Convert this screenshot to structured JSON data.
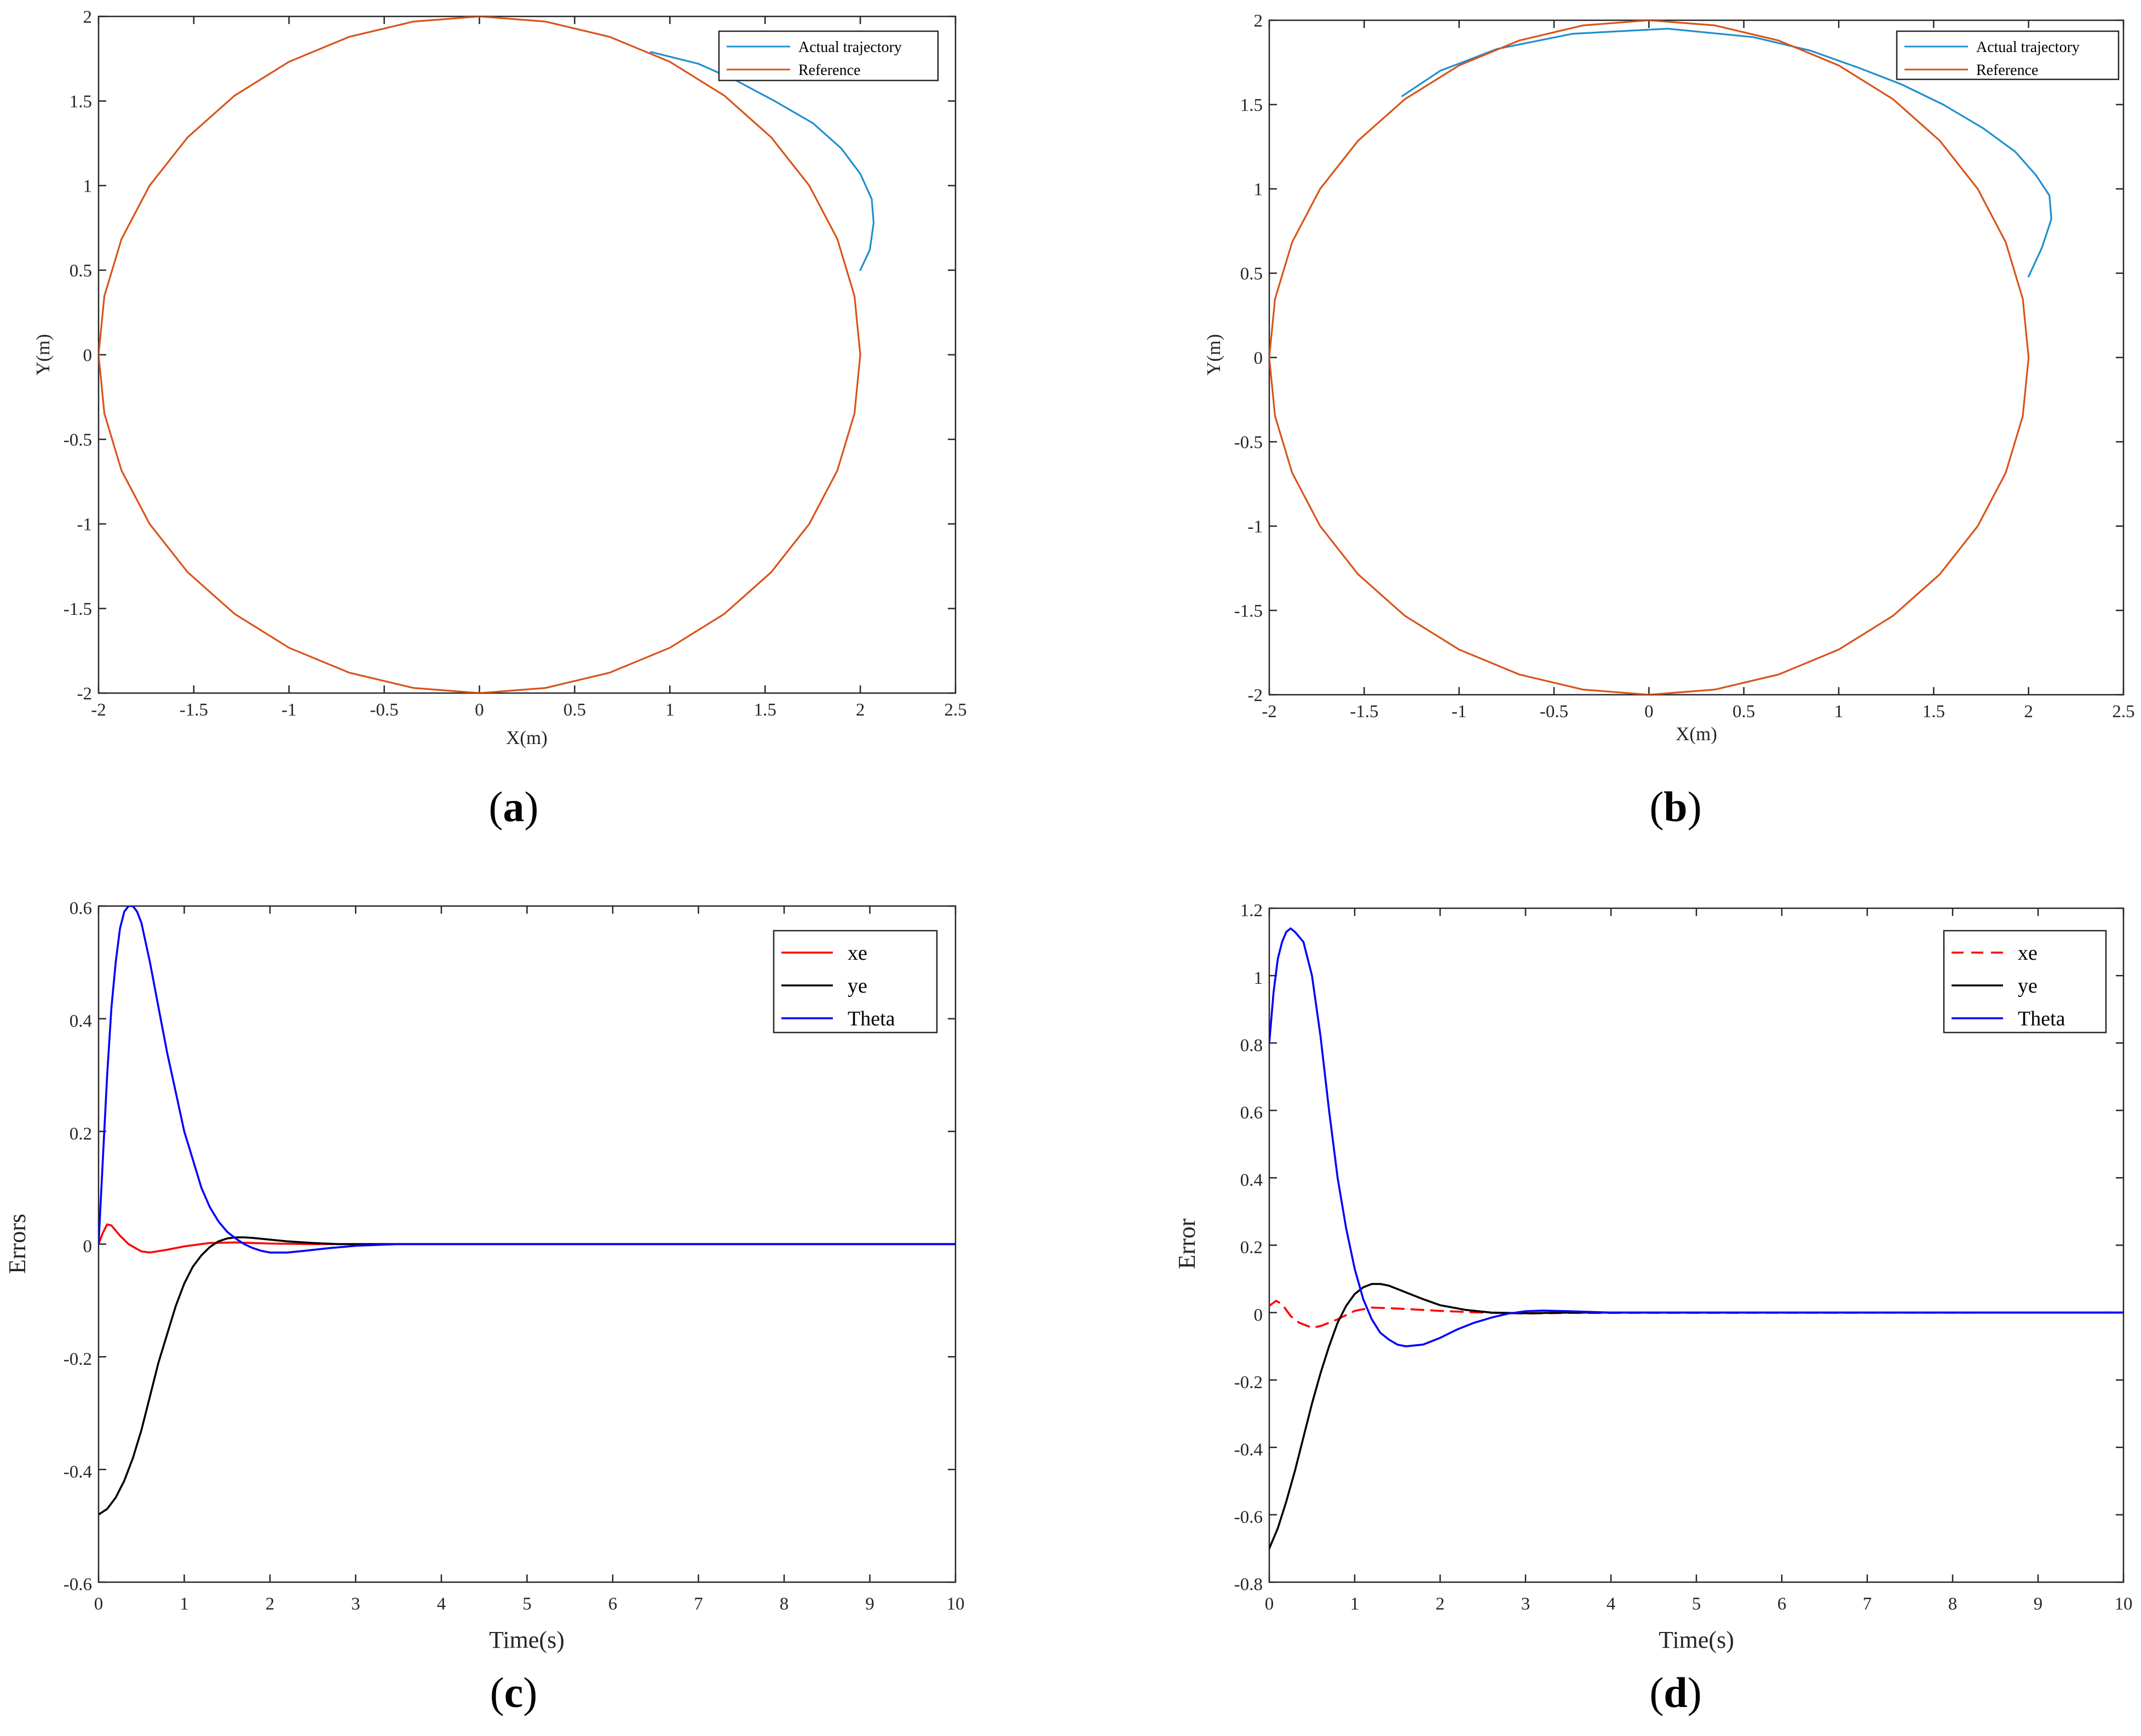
{
  "chart_data": [
    {
      "panel": "a",
      "type": "line",
      "caption": {
        "open": "(",
        "letter": "a",
        "close": ")"
      },
      "xlabel": "X(m)",
      "ylabel": "Y(m)",
      "xlim": [
        -2,
        2.5
      ],
      "ylim": [
        -2,
        2
      ],
      "xticks": [
        "-2",
        "-1.5",
        "-1",
        "-0.5",
        "0",
        "0.5",
        "1",
        "1.5",
        "2",
        "2.5"
      ],
      "xtick_values": [
        -2,
        -1.5,
        -1,
        -0.5,
        0,
        0.5,
        1,
        1.5,
        2,
        2.5
      ],
      "yticks": [
        "-2",
        "-1.5",
        "-1",
        "-0.5",
        "0",
        "0.5",
        "1",
        "1.5",
        "2"
      ],
      "ytick_values": [
        -2,
        -1.5,
        -1,
        -0.5,
        0,
        0.5,
        1,
        1.5,
        2
      ],
      "legend_position": "top-right",
      "series": [
        {
          "name": "Actual trajectory",
          "color": "#1f8fd0",
          "x": [
            2.0,
            2.05,
            2.07,
            2.06,
            2.0,
            1.9,
            1.75,
            1.55,
            1.35,
            1.15,
            0.9
          ],
          "y": [
            0.5,
            0.62,
            0.78,
            0.92,
            1.07,
            1.22,
            1.37,
            1.5,
            1.62,
            1.72,
            1.79
          ]
        },
        {
          "name": "Reference",
          "color": "#d95319",
          "shape": "circle",
          "radius": 2,
          "center": [
            0,
            0
          ]
        }
      ]
    },
    {
      "panel": "b",
      "type": "line",
      "caption": {
        "open": "(",
        "letter": "b",
        "close": ")"
      },
      "xlabel": "X(m)",
      "ylabel": "Y(m)",
      "xlim": [
        -2,
        2.5
      ],
      "ylim": [
        -2,
        2
      ],
      "xticks": [
        "-2",
        "-1.5",
        "-1",
        "-0.5",
        "0",
        "0.5",
        "1",
        "1.5",
        "2",
        "2.5"
      ],
      "xtick_values": [
        -2,
        -1.5,
        -1,
        -0.5,
        0,
        0.5,
        1,
        1.5,
        2,
        2.5
      ],
      "yticks": [
        "-2",
        "-1.5",
        "-1",
        "-0.5",
        "0",
        "0.5",
        "1",
        "1.5",
        "2"
      ],
      "ytick_values": [
        -2,
        -1.5,
        -1,
        -0.5,
        0,
        0.5,
        1,
        1.5,
        2
      ],
      "legend_position": "top-right",
      "series": [
        {
          "name": "Actual trajectory",
          "color": "#1f8fd0",
          "x": [
            2.0,
            2.07,
            2.12,
            2.11,
            2.04,
            1.93,
            1.76,
            1.55,
            1.33,
            1.1,
            0.85,
            0.55,
            0.1,
            -0.4,
            -0.8,
            -1.1,
            -1.3
          ],
          "y": [
            0.48,
            0.65,
            0.82,
            0.96,
            1.08,
            1.22,
            1.36,
            1.5,
            1.62,
            1.72,
            1.82,
            1.9,
            1.95,
            1.92,
            1.83,
            1.7,
            1.55
          ]
        },
        {
          "name": "Reference",
          "color": "#d95319",
          "shape": "circle",
          "radius": 2,
          "center": [
            0,
            0
          ]
        }
      ]
    },
    {
      "panel": "c",
      "type": "line",
      "caption": {
        "open": "(",
        "letter": "c",
        "close": ")"
      },
      "xlabel": "Time(s)",
      "ylabel": "Errors",
      "xlim": [
        0,
        10
      ],
      "ylim": [
        -0.6,
        0.6
      ],
      "xticks": [
        "0",
        "1",
        "2",
        "3",
        "4",
        "5",
        "6",
        "7",
        "8",
        "9",
        "10"
      ],
      "xtick_values": [
        0,
        1,
        2,
        3,
        4,
        5,
        6,
        7,
        8,
        9,
        10
      ],
      "yticks": [
        "-0.6",
        "-0.4",
        "-0.2",
        "0",
        "0.2",
        "0.4",
        "0.6"
      ],
      "ytick_values": [
        -0.6,
        -0.4,
        -0.2,
        0,
        0.2,
        0.4,
        0.6
      ],
      "legend_position": "top-right",
      "series": [
        {
          "name": "xe",
          "color": "#ff0000",
          "dash": "solid",
          "x": [
            0,
            0.05,
            0.1,
            0.15,
            0.25,
            0.35,
            0.5,
            0.6,
            0.8,
            1.0,
            1.3,
            1.6,
            2.0,
            2.5,
            3.0,
            10
          ],
          "y": [
            0,
            0.02,
            0.035,
            0.033,
            0.015,
            0.0,
            -0.013,
            -0.015,
            -0.01,
            -0.004,
            0.002,
            0.003,
            0.001,
            0.0,
            0.0,
            0.0
          ]
        },
        {
          "name": "ye",
          "color": "#000000",
          "dash": "solid",
          "x": [
            0,
            0.1,
            0.2,
            0.3,
            0.4,
            0.5,
            0.6,
            0.7,
            0.8,
            0.9,
            1.0,
            1.1,
            1.2,
            1.3,
            1.4,
            1.5,
            1.6,
            1.7,
            1.8,
            2.0,
            2.2,
            2.5,
            2.8,
            3.2,
            10
          ],
          "y": [
            -0.48,
            -0.47,
            -0.45,
            -0.42,
            -0.38,
            -0.33,
            -0.27,
            -0.21,
            -0.16,
            -0.11,
            -0.07,
            -0.04,
            -0.02,
            -0.005,
            0.005,
            0.01,
            0.012,
            0.012,
            0.011,
            0.008,
            0.005,
            0.002,
            0.0,
            0.0,
            0.0
          ]
        },
        {
          "name": "Theta",
          "color": "#0000ff",
          "dash": "solid",
          "x": [
            0,
            0.05,
            0.1,
            0.15,
            0.2,
            0.25,
            0.3,
            0.35,
            0.4,
            0.45,
            0.5,
            0.6,
            0.7,
            0.8,
            0.9,
            1.0,
            1.1,
            1.2,
            1.3,
            1.4,
            1.5,
            1.6,
            1.7,
            1.8,
            1.9,
            2.0,
            2.2,
            2.4,
            2.7,
            3.0,
            3.5,
            10
          ],
          "y": [
            0.0,
            0.15,
            0.3,
            0.42,
            0.5,
            0.56,
            0.59,
            0.6,
            0.6,
            0.59,
            0.57,
            0.5,
            0.42,
            0.34,
            0.27,
            0.2,
            0.15,
            0.1,
            0.065,
            0.04,
            0.022,
            0.01,
            0.0,
            -0.007,
            -0.012,
            -0.015,
            -0.015,
            -0.012,
            -0.007,
            -0.003,
            0.0,
            0.0
          ]
        }
      ]
    },
    {
      "panel": "d",
      "type": "line",
      "caption": {
        "open": "(",
        "letter": "d",
        "close": ")"
      },
      "xlabel": "Time(s)",
      "ylabel": "Error",
      "xlim": [
        0,
        10
      ],
      "ylim": [
        -0.8,
        1.2
      ],
      "xticks": [
        "0",
        "1",
        "2",
        "3",
        "4",
        "5",
        "6",
        "7",
        "8",
        "9",
        "10"
      ],
      "xtick_values": [
        0,
        1,
        2,
        3,
        4,
        5,
        6,
        7,
        8,
        9,
        10
      ],
      "yticks": [
        "-0.8",
        "-0.6",
        "-0.4",
        "-0.2",
        "0",
        "0.2",
        "0.4",
        "0.6",
        "0.8",
        "1",
        "1.2"
      ],
      "ytick_values": [
        -0.8,
        -0.6,
        -0.4,
        -0.2,
        0,
        0.2,
        0.4,
        0.6,
        0.8,
        1.0,
        1.2
      ],
      "legend_position": "top-right",
      "series": [
        {
          "name": "xe",
          "color": "#ff0000",
          "dash": "dashed",
          "x": [
            0,
            0.08,
            0.15,
            0.25,
            0.35,
            0.5,
            0.6,
            0.8,
            1.0,
            1.2,
            1.5,
            2.0,
            2.5,
            3.0,
            3.5,
            10
          ],
          "y": [
            0.02,
            0.035,
            0.025,
            -0.01,
            -0.03,
            -0.045,
            -0.04,
            -0.02,
            0.005,
            0.015,
            0.012,
            0.005,
            0.0,
            -0.003,
            -0.001,
            0.0
          ]
        },
        {
          "name": "ye",
          "color": "#000000",
          "dash": "solid",
          "x": [
            0,
            0.1,
            0.2,
            0.3,
            0.4,
            0.5,
            0.6,
            0.7,
            0.8,
            0.9,
            1.0,
            1.1,
            1.2,
            1.3,
            1.4,
            1.5,
            1.6,
            1.8,
            2.0,
            2.3,
            2.6,
            3.0,
            3.5,
            4.0,
            10
          ],
          "y": [
            -0.7,
            -0.64,
            -0.56,
            -0.47,
            -0.37,
            -0.27,
            -0.18,
            -0.1,
            -0.03,
            0.02,
            0.055,
            0.075,
            0.085,
            0.085,
            0.08,
            0.07,
            0.06,
            0.04,
            0.022,
            0.008,
            0.0,
            -0.002,
            0.0,
            0.0,
            0.0
          ]
        },
        {
          "name": "Theta",
          "color": "#0000ff",
          "dash": "solid",
          "x": [
            0,
            0.05,
            0.1,
            0.15,
            0.2,
            0.25,
            0.3,
            0.4,
            0.5,
            0.6,
            0.7,
            0.8,
            0.9,
            1.0,
            1.1,
            1.2,
            1.3,
            1.4,
            1.5,
            1.6,
            1.8,
            2.0,
            2.2,
            2.4,
            2.6,
            2.8,
            3.0,
            3.2,
            3.5,
            4.0,
            10
          ],
          "y": [
            0.8,
            0.95,
            1.05,
            1.1,
            1.13,
            1.14,
            1.13,
            1.1,
            1.0,
            0.82,
            0.6,
            0.4,
            0.25,
            0.13,
            0.04,
            -0.02,
            -0.06,
            -0.08,
            -0.095,
            -0.1,
            -0.095,
            -0.075,
            -0.05,
            -0.03,
            -0.015,
            -0.003,
            0.004,
            0.006,
            0.004,
            0.0,
            0.0
          ]
        }
      ]
    }
  ]
}
